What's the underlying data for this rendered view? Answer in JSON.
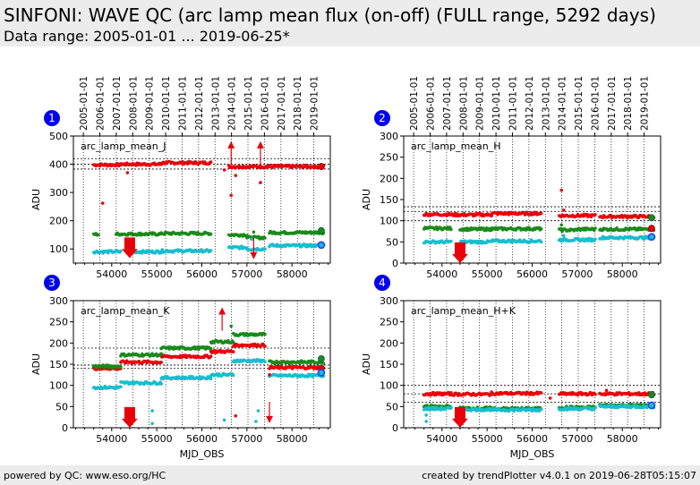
{
  "header": {
    "title": "SINFONI: WAVE QC (arc lamp mean flux (on-off) (FULL range, 5292 days)",
    "subtitle": "Data range: 2005-01-01 ... 2019-06-25*"
  },
  "footer": {
    "left": "powered by QC: www.eso.org/HC",
    "right": "created by trendPlotter v4.0.1 on 2019-06-28T05:15:07"
  },
  "colors": {
    "red": "#e8000b",
    "green": "#1a8a1a",
    "cyan": "#17becf",
    "badge": "#0000ee",
    "last_point_blue": "#1f3fff"
  },
  "chart_data": [
    {
      "type": "scatter",
      "panel": "1",
      "label": "arc_lamp_mean_J",
      "ylabel": "ADU",
      "xlabel": "",
      "xlim": [
        53150,
        58850
      ],
      "ylim": [
        50,
        500
      ],
      "yticks": [
        100,
        200,
        300,
        400,
        500
      ],
      "xticks": [
        54000,
        55000,
        56000,
        57000,
        58000
      ],
      "date_ticks": [
        "2005-01-01",
        "2006-01-01",
        "2007-01-01",
        "2008-01-01",
        "2009-01-01",
        "2010-01-01",
        "2011-01-01",
        "2012-01-01",
        "2013-01-01",
        "2014-01-01",
        "2015-01-01",
        "2016-01-01",
        "2017-01-01",
        "2018-01-01",
        "2019-01-01"
      ],
      "date_ticks_mjd": [
        53371,
        53736,
        54101,
        54466,
        54832,
        55197,
        55562,
        55927,
        56293,
        56658,
        57023,
        57388,
        57754,
        58119,
        58484
      ],
      "reference_lines": [
        420,
        400,
        383
      ],
      "grid": true,
      "series": [
        {
          "color": "red",
          "segments": [
            [
              53600,
              54200,
              398
            ],
            [
              54200,
              55100,
              400
            ],
            [
              55100,
              56200,
              405
            ],
            [
              56600,
              57500,
              392
            ],
            [
              57500,
              58700,
              392
            ]
          ]
        },
        {
          "color": "green",
          "segments": [
            [
              53600,
              53700,
              152
            ],
            [
              54100,
              55100,
              153
            ],
            [
              55100,
              56200,
              155
            ],
            [
              56600,
              57000,
              150
            ],
            [
              57000,
              57400,
              140
            ],
            [
              57500,
              58700,
              158
            ]
          ]
        },
        {
          "color": "cyan",
          "segments": [
            [
              53600,
              54200,
              90
            ],
            [
              54400,
              55100,
              90
            ],
            [
              55100,
              56200,
              93
            ],
            [
              56600,
              57000,
              105
            ],
            [
              57000,
              57400,
              100
            ],
            [
              57500,
              58700,
              112
            ]
          ]
        }
      ],
      "outliers": [
        [
          53800,
          262,
          "red"
        ],
        [
          54350,
          370,
          "red"
        ],
        [
          56500,
          380,
          "red"
        ],
        [
          56650,
          290,
          "red"
        ],
        [
          56750,
          360,
          "red"
        ],
        [
          57300,
          335,
          "red"
        ],
        [
          57150,
          160,
          "green"
        ],
        [
          57100,
          135,
          "cyan"
        ]
      ],
      "arrows_up": [
        [
          56650,
          475,
          "red"
        ],
        [
          57300,
          475,
          "red"
        ]
      ],
      "arrows_down": [
        [
          54400,
          90,
          "red"
        ],
        [
          57150,
          70,
          "red"
        ]
      ],
      "last_points": {
        "red": [
          58650,
          392
        ],
        "green": [
          58650,
          165
        ],
        "cyan": [
          58650,
          114
        ]
      }
    },
    {
      "type": "scatter",
      "panel": "2",
      "label": "arc_lamp_mean_H",
      "ylabel": "ADU",
      "xlabel": "",
      "xlim": [
        53150,
        58850
      ],
      "ylim": [
        0,
        300
      ],
      "yticks": [
        0,
        50,
        100,
        150,
        200,
        250,
        300
      ],
      "xticks": [
        54000,
        55000,
        56000,
        57000,
        58000
      ],
      "date_ticks": [
        "2005-01-01",
        "2006-01-01",
        "2007-01-01",
        "2008-01-01",
        "2009-01-01",
        "2010-01-01",
        "2011-01-01",
        "2012-01-01",
        "2013-01-01",
        "2014-01-01",
        "2015-01-01",
        "2016-01-01",
        "2017-01-01",
        "2018-01-01",
        "2019-01-01"
      ],
      "date_ticks_mjd": [
        53371,
        53736,
        54101,
        54466,
        54832,
        55197,
        55562,
        55927,
        56293,
        56658,
        57023,
        57388,
        57754,
        58119,
        58484
      ],
      "reference_lines": [
        133,
        122,
        100
      ],
      "grid": true,
      "series": [
        {
          "color": "red",
          "segments": [
            [
              53600,
              54200,
              115
            ],
            [
              54200,
              55100,
              114
            ],
            [
              55100,
              56200,
              117
            ],
            [
              56600,
              57400,
              112
            ],
            [
              57500,
              58700,
              110
            ]
          ]
        },
        {
          "color": "green",
          "segments": [
            [
              53600,
              54200,
              82
            ],
            [
              54400,
              55100,
              80
            ],
            [
              55100,
              56200,
              81
            ],
            [
              56600,
              57000,
              78
            ],
            [
              57000,
              57400,
              80
            ],
            [
              57500,
              58700,
              80
            ]
          ]
        },
        {
          "color": "cyan",
          "segments": [
            [
              53600,
              54200,
              50
            ],
            [
              54400,
              55100,
              50
            ],
            [
              55100,
              56200,
              52
            ],
            [
              56600,
              57000,
              55
            ],
            [
              57000,
              57400,
              55
            ],
            [
              57500,
              58700,
              60
            ]
          ]
        }
      ],
      "outliers": [
        [
          56650,
          172,
          "red"
        ],
        [
          56700,
          125,
          "red"
        ],
        [
          56650,
          90,
          "green"
        ],
        [
          56700,
          65,
          "cyan"
        ]
      ],
      "arrows_up": [],
      "arrows_down": [
        [
          54400,
          15,
          "red"
        ]
      ],
      "last_points": {
        "red": [
          58650,
          82
        ],
        "green": [
          58650,
          107
        ],
        "cyan": [
          58650,
          62
        ]
      }
    },
    {
      "type": "scatter",
      "panel": "3",
      "label": "arc_lamp_mean_K",
      "ylabel": "ADU",
      "xlabel": "MJD_OBS",
      "xlim": [
        53150,
        58850
      ],
      "ylim": [
        0,
        300
      ],
      "yticks": [
        0,
        50,
        100,
        150,
        200,
        250,
        300
      ],
      "xticks": [
        54000,
        55000,
        56000,
        57000,
        58000
      ],
      "date_ticks": [],
      "date_ticks_mjd": [],
      "reference_lines": [
        188,
        148,
        140
      ],
      "grid": true,
      "series": [
        {
          "color": "red",
          "segments": [
            [
              53600,
              54200,
              140
            ],
            [
              54200,
              55100,
              155
            ],
            [
              55100,
              56200,
              168
            ],
            [
              56200,
              56700,
              180
            ],
            [
              56700,
              57400,
              195
            ],
            [
              57500,
              58700,
              142
            ]
          ]
        },
        {
          "color": "green",
          "segments": [
            [
              53600,
              54200,
              145
            ],
            [
              54200,
              55100,
              172
            ],
            [
              55100,
              56200,
              188
            ],
            [
              56200,
              56700,
              203
            ],
            [
              56700,
              57400,
              220
            ],
            [
              57500,
              58700,
              155
            ]
          ]
        },
        {
          "color": "cyan",
          "segments": [
            [
              53600,
              54200,
              95
            ],
            [
              54200,
              55100,
              106
            ],
            [
              55100,
              56200,
              118
            ],
            [
              56200,
              56700,
              125
            ],
            [
              56700,
              57400,
              158
            ],
            [
              57500,
              58700,
              123
            ]
          ]
        }
      ],
      "outliers": [
        [
          56650,
          240,
          "green"
        ],
        [
          56500,
          18,
          "cyan"
        ],
        [
          56750,
          28,
          "red"
        ],
        [
          57200,
          15,
          "cyan"
        ],
        [
          57250,
          40,
          "cyan"
        ],
        [
          57500,
          125,
          "red"
        ],
        [
          54900,
          40,
          "cyan"
        ],
        [
          54900,
          10,
          "cyan"
        ]
      ],
      "arrows_up": [
        [
          56450,
          280,
          "red"
        ]
      ],
      "arrows_down": [
        [
          54400,
          15,
          "red"
        ],
        [
          57500,
          15,
          "red"
        ]
      ],
      "last_points": {
        "red": [
          58650,
          140
        ],
        "green": [
          58650,
          163
        ],
        "cyan": [
          58650,
          130
        ]
      }
    },
    {
      "type": "scatter",
      "panel": "4",
      "label": "arc_lamp_mean_H+K",
      "ylabel": "ADU",
      "xlabel": "MJD_OBS",
      "xlim": [
        53150,
        58850
      ],
      "ylim": [
        0,
        300
      ],
      "yticks": [
        0,
        50,
        100,
        150,
        200,
        250,
        300
      ],
      "xticks": [
        54000,
        55000,
        56000,
        57000,
        58000
      ],
      "date_ticks": [],
      "date_ticks_mjd": [],
      "reference_lines": [
        100,
        80,
        60
      ],
      "grid": true,
      "series": [
        {
          "color": "red",
          "segments": [
            [
              53600,
              54200,
              80
            ],
            [
              54200,
              55100,
              79
            ],
            [
              55100,
              56200,
              81
            ],
            [
              56600,
              57400,
              80
            ],
            [
              57500,
              58700,
              80
            ]
          ]
        },
        {
          "color": "green",
          "segments": [
            [
              53600,
              54200,
              50
            ],
            [
              54400,
              55100,
              46
            ],
            [
              55100,
              56200,
              45
            ],
            [
              56600,
              57400,
              48
            ],
            [
              57500,
              58700,
              53
            ]
          ]
        },
        {
          "color": "cyan",
          "segments": [
            [
              53600,
              54200,
              45
            ],
            [
              54400,
              55100,
              43
            ],
            [
              55100,
              56200,
              42
            ],
            [
              56600,
              57400,
              45
            ],
            [
              57500,
              58700,
              50
            ]
          ]
        }
      ],
      "outliers": [
        [
          53650,
          30,
          "cyan"
        ],
        [
          53650,
          15,
          "cyan"
        ],
        [
          57650,
          88,
          "red"
        ],
        [
          56400,
          70,
          "red"
        ]
      ],
      "arrows_up": [],
      "arrows_down": [
        [
          54400,
          15,
          "red"
        ]
      ],
      "last_points": {
        "red": [
          58650,
          78
        ],
        "green": [
          58650,
          78
        ],
        "cyan": [
          58650,
          53
        ]
      }
    }
  ]
}
